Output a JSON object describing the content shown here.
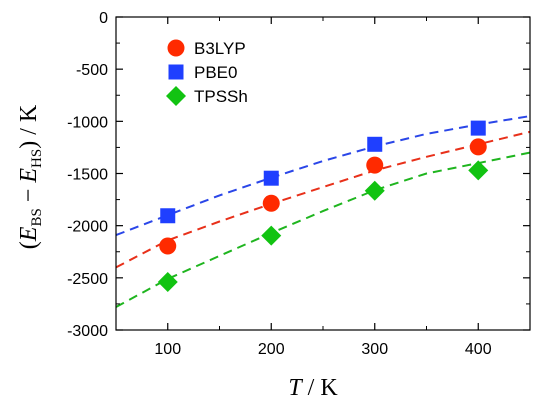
{
  "chart_data": {
    "type": "scatter",
    "xlabel": {
      "var": "T",
      "unit": " / K"
    },
    "ylabel": {
      "open": "(",
      "E1": "E",
      "sub1": "BS",
      "minus": " − ",
      "E2": "E",
      "sub2": "HS",
      "close": ") / K"
    },
    "xlim": [
      50,
      450
    ],
    "ylim": [
      -3000,
      0
    ],
    "x_ticks": [
      100,
      200,
      300,
      400
    ],
    "x_tick_labels": [
      "100",
      "200",
      "300",
      "400"
    ],
    "y_ticks": [
      0,
      -500,
      -1000,
      -1500,
      -2000,
      -2500,
      -3000
    ],
    "y_tick_labels": [
      "0",
      "-500",
      "-1000",
      "-1500",
      "-2000",
      "-2500",
      "-3000"
    ],
    "grid": false,
    "legend_position": "top-left",
    "series": [
      {
        "name": "B3LYP",
        "marker": "circle",
        "color": "#ff2a00",
        "x": [
          100,
          200,
          300,
          400
        ],
        "y": [
          -2195,
          -1785,
          -1420,
          -1245
        ],
        "fit_line": {
          "style": "dashed",
          "x": [
            50,
            100,
            150,
            200,
            250,
            300,
            350,
            400,
            450
          ],
          "y": [
            -2400,
            -2140,
            -1960,
            -1790,
            -1630,
            -1470,
            -1340,
            -1220,
            -1100
          ]
        }
      },
      {
        "name": "PBE0",
        "marker": "square",
        "color": "#1f3fff",
        "x": [
          100,
          200,
          300,
          400
        ],
        "y": [
          -1905,
          -1545,
          -1220,
          -1065
        ],
        "fit_line": {
          "style": "dashed",
          "x": [
            50,
            100,
            150,
            200,
            250,
            300,
            350,
            400,
            450
          ],
          "y": [
            -2090,
            -1900,
            -1710,
            -1540,
            -1380,
            -1240,
            -1120,
            -1030,
            -950
          ]
        }
      },
      {
        "name": "TPSSh",
        "marker": "diamond",
        "color": "#12c312",
        "x": [
          100,
          200,
          300,
          400
        ],
        "y": [
          -2540,
          -2095,
          -1665,
          -1470
        ],
        "fit_line": {
          "style": "dashed",
          "x": [
            50,
            100,
            150,
            200,
            250,
            300,
            350,
            400,
            450
          ],
          "y": [
            -2780,
            -2510,
            -2290,
            -2070,
            -1860,
            -1660,
            -1500,
            -1400,
            -1300
          ]
        }
      }
    ],
    "line_colors": {
      "B3LYP": "#e8301a",
      "PBE0": "#2a46e8",
      "TPSSh": "#1fb51f"
    }
  }
}
